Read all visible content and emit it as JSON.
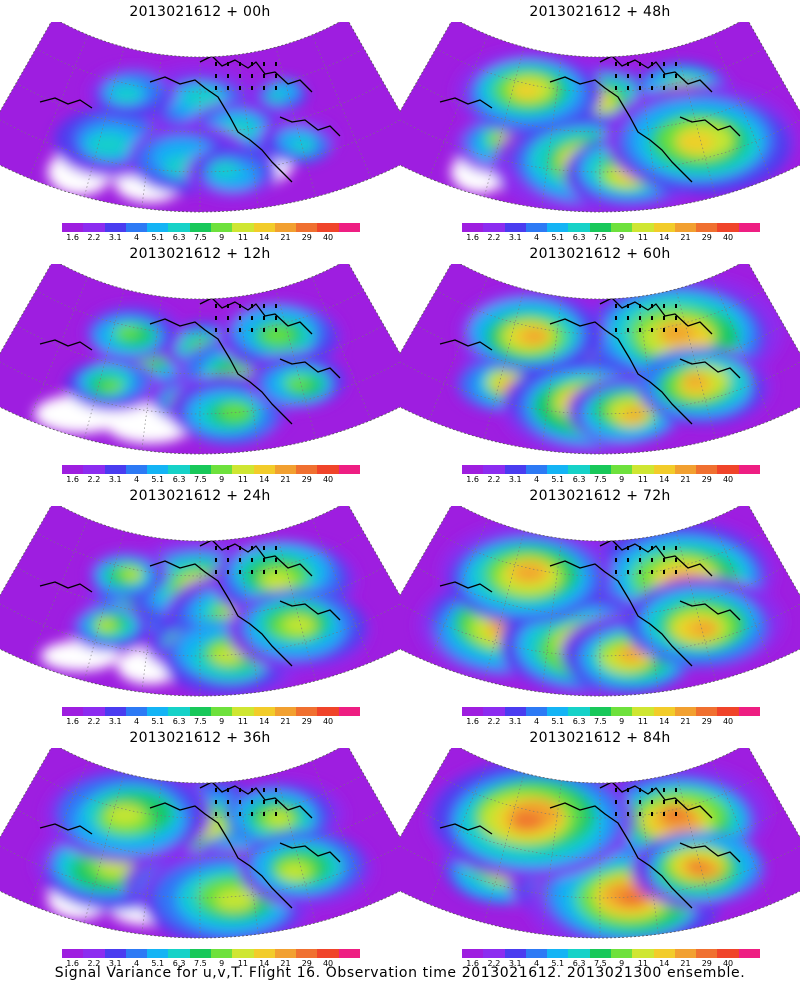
{
  "figure": {
    "caption": "Signal Variance for u,v,T. Flight 16. Observation time 2013021612. 2013021300 ensemble."
  },
  "colorbar": {
    "ticks": [
      "1.6",
      "2.2",
      "3.1",
      "4",
      "5.1",
      "6.3",
      "7.5",
      "9",
      "11",
      "14",
      "21",
      "29",
      "40"
    ],
    "colors": [
      "#9e1ee0",
      "#8c2cf0",
      "#4a3cf0",
      "#2d7af5",
      "#14b4f5",
      "#16d2c8",
      "#18c85a",
      "#6ee13c",
      "#cfe632",
      "#f2cc2a",
      "#f2a030",
      "#f07030",
      "#f0442a",
      "#ee1e82"
    ]
  },
  "panels": [
    {
      "title": "2013021612 + 00h",
      "lead_hours": 0,
      "intensity": 0.25
    },
    {
      "title": "2013021612 + 48h",
      "lead_hours": 48,
      "intensity": 0.68
    },
    {
      "title": "2013021612 + 12h",
      "lead_hours": 12,
      "intensity": 0.4
    },
    {
      "title": "2013021612 + 60h",
      "lead_hours": 60,
      "intensity": 0.74
    },
    {
      "title": "2013021612 + 24h",
      "lead_hours": 24,
      "intensity": 0.5
    },
    {
      "title": "2013021612 + 72h",
      "lead_hours": 72,
      "intensity": 0.82
    },
    {
      "title": "2013021612 + 36h",
      "lead_hours": 36,
      "intensity": 0.58
    },
    {
      "title": "2013021612 + 84h",
      "lead_hours": 84,
      "intensity": 0.9
    }
  ]
}
